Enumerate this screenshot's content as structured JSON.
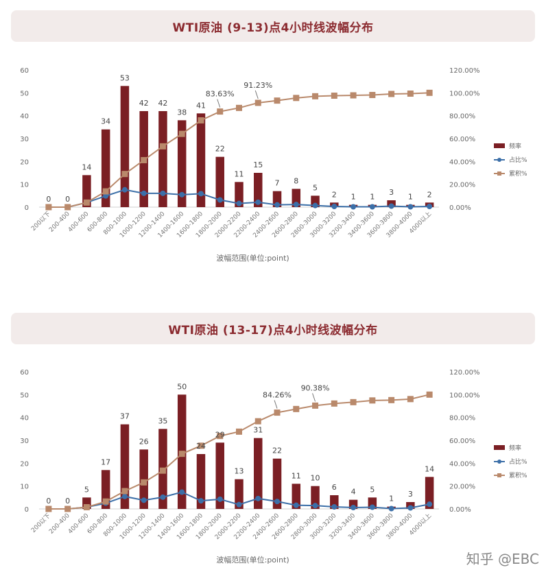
{
  "chart_data": [
    {
      "type": "bar",
      "title": "WTI原油 (9-13)点4小时线波幅分布",
      "xlabel": "波幅范围(单位:point)",
      "ylim": [
        0,
        60
      ],
      "y2lim": [
        0,
        1.2
      ],
      "y_ticks": [
        "0",
        "10",
        "20",
        "30",
        "40",
        "50",
        "60"
      ],
      "y2_ticks": [
        "0.00%",
        "20.00%",
        "40.00%",
        "60.00%",
        "80.00%",
        "100.00%",
        "120.00%"
      ],
      "categories": [
        "200以下",
        "200-400",
        "400-600",
        "600-800",
        "800-1000",
        "1000-1200",
        "1200-1400",
        "1400-1600",
        "1600-1800",
        "1800-2000",
        "2000-2200",
        "2200-2400",
        "2400-2600",
        "2600-2800",
        "2800-3000",
        "3000-3200",
        "3200-3400",
        "3400-3600",
        "3600-3800",
        "3800-4000",
        "4000以上"
      ],
      "series": [
        {
          "name": "频率",
          "kind": "bar",
          "color": "#7b1f24",
          "values": [
            0,
            0,
            14,
            34,
            53,
            42,
            42,
            38,
            41,
            22,
            11,
            15,
            7,
            8,
            5,
            2,
            1,
            1,
            3,
            1,
            2
          ]
        },
        {
          "name": "占比%",
          "kind": "line",
          "color": "#3c6fa8",
          "values": [
            0,
            0,
            0.04,
            0.098,
            0.152,
            0.121,
            0.121,
            0.109,
            0.118,
            0.063,
            0.032,
            0.043,
            0.02,
            0.023,
            0.014,
            0.006,
            0.003,
            0.003,
            0.009,
            0.003,
            0.006
          ]
        },
        {
          "name": "累积%",
          "kind": "line",
          "color": "#b9896b",
          "values": [
            0,
            0,
            0.04,
            0.138,
            0.29,
            0.411,
            0.532,
            0.641,
            0.759,
            0.8363,
            0.868,
            0.9123,
            0.932,
            0.955,
            0.97,
            0.975,
            0.978,
            0.981,
            0.99,
            0.993,
            1.0
          ]
        }
      ],
      "bar_labels": [
        "0",
        "0",
        "14",
        "34",
        "53",
        "42",
        "42",
        "38",
        "41",
        "22",
        "11",
        "15",
        "7",
        "8",
        "5",
        "2",
        "1",
        "1",
        "3",
        "1",
        "2"
      ],
      "annotations": [
        {
          "text": "83.63%",
          "category_index": 9
        },
        {
          "text": "91.23%",
          "category_index": 11
        }
      ],
      "legend": "right"
    },
    {
      "type": "bar",
      "title": "WTI原油 (13-17)点4小时线波幅分布",
      "xlabel": "波幅范围(单位:point)",
      "ylim": [
        0,
        60
      ],
      "y2lim": [
        0,
        1.2
      ],
      "y_ticks": [
        "0",
        "10",
        "20",
        "30",
        "40",
        "50",
        "60"
      ],
      "y2_ticks": [
        "0.00%",
        "20.00%",
        "40.00%",
        "60.00%",
        "80.00%",
        "100.00%",
        "120.00%"
      ],
      "categories": [
        "200以下",
        "200-400",
        "400-600",
        "600-800",
        "800-1000",
        "1000-1200",
        "1200-1400",
        "1400-1600",
        "1600-1800",
        "1800-2000",
        "2000-2200",
        "2200-2400",
        "2400-2600",
        "2600-2800",
        "2800-3000",
        "3000-3200",
        "3200-3400",
        "3400-3600",
        "3600-3800",
        "3800-4000",
        "4000以上"
      ],
      "series": [
        {
          "name": "频率",
          "kind": "bar",
          "color": "#7b1f24",
          "values": [
            0,
            0,
            5,
            17,
            37,
            26,
            35,
            50,
            24,
            29,
            13,
            31,
            22,
            11,
            10,
            6,
            4,
            5,
            1,
            3,
            14
          ]
        },
        {
          "name": "占比%",
          "kind": "line",
          "color": "#3c6fa8",
          "values": [
            0,
            0,
            0.015,
            0.05,
            0.109,
            0.076,
            0.103,
            0.147,
            0.071,
            0.085,
            0.038,
            0.091,
            0.065,
            0.032,
            0.029,
            0.018,
            0.012,
            0.015,
            0.003,
            0.009,
            0.041
          ]
        },
        {
          "name": "累积%",
          "kind": "line",
          "color": "#b9896b",
          "values": [
            0,
            0,
            0.015,
            0.065,
            0.156,
            0.232,
            0.335,
            0.482,
            0.553,
            0.638,
            0.676,
            0.767,
            0.8426,
            0.874,
            0.9038,
            0.922,
            0.934,
            0.949,
            0.952,
            0.961,
            1.0
          ]
        }
      ],
      "bar_labels": [
        "0",
        "0",
        "5",
        "17",
        "37",
        "26",
        "35",
        "50",
        "24",
        "29",
        "13",
        "31",
        "22",
        "11",
        "10",
        "6",
        "4",
        "5",
        "1",
        "3",
        "14"
      ],
      "annotations": [
        {
          "text": "84.26%",
          "category_index": 12
        },
        {
          "text": "90.38%",
          "category_index": 14
        }
      ],
      "legend": "right"
    }
  ],
  "watermark": "知乎 @EBC"
}
